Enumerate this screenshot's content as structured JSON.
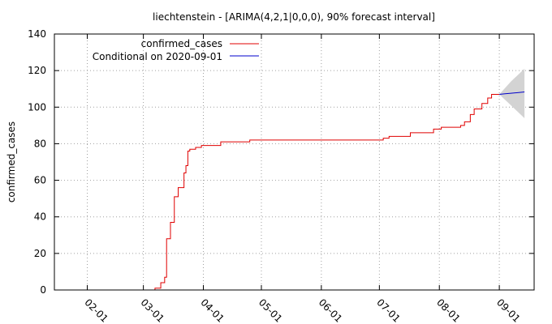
{
  "chart_data": {
    "type": "line",
    "title": "liechtenstein -  [ARIMA(4,2,1|0,0,0), 90% forecast interval]",
    "xlabel": "",
    "ylabel": "confirmed_cases",
    "xlim": [
      "2020-01-15",
      "2020-09-19"
    ],
    "ylim": [
      0,
      140
    ],
    "y_ticks": [
      0,
      20,
      40,
      60,
      80,
      100,
      120,
      140
    ],
    "x_ticks": [
      {
        "date": "2020-02-01",
        "label": "02-01"
      },
      {
        "date": "2020-03-01",
        "label": "03-01"
      },
      {
        "date": "2020-04-01",
        "label": "04-01"
      },
      {
        "date": "2020-05-01",
        "label": "05-01"
      },
      {
        "date": "2020-06-01",
        "label": "06-01"
      },
      {
        "date": "2020-07-01",
        "label": "07-01"
      },
      {
        "date": "2020-08-01",
        "label": "08-01"
      },
      {
        "date": "2020-09-01",
        "label": "09-01"
      }
    ],
    "grid": true,
    "legend_position": "top-left",
    "series": [
      {
        "name": "confirmed_cases",
        "color": "#e00000",
        "style": "step",
        "points": [
          [
            "2020-02-27",
            0
          ],
          [
            "2020-03-07",
            1
          ],
          [
            "2020-03-10",
            4
          ],
          [
            "2020-03-12",
            7
          ],
          [
            "2020-03-13",
            28
          ],
          [
            "2020-03-15",
            37
          ],
          [
            "2020-03-17",
            51
          ],
          [
            "2020-03-19",
            56
          ],
          [
            "2020-03-22",
            64
          ],
          [
            "2020-03-23",
            68
          ],
          [
            "2020-03-24",
            76
          ],
          [
            "2020-03-25",
            77
          ],
          [
            "2020-03-28",
            78
          ],
          [
            "2020-03-31",
            79
          ],
          [
            "2020-04-10",
            81
          ],
          [
            "2020-04-25",
            82
          ],
          [
            "2020-07-03",
            83
          ],
          [
            "2020-07-06",
            84
          ],
          [
            "2020-07-17",
            86
          ],
          [
            "2020-07-29",
            88
          ],
          [
            "2020-08-02",
            89
          ],
          [
            "2020-08-12",
            90
          ],
          [
            "2020-08-14",
            92
          ],
          [
            "2020-08-17",
            96
          ],
          [
            "2020-08-19",
            99
          ],
          [
            "2020-08-23",
            102
          ],
          [
            "2020-08-26",
            105
          ],
          [
            "2020-08-28",
            107
          ],
          [
            "2020-09-01",
            107
          ]
        ]
      },
      {
        "name": "Conditional on 2020-09-01",
        "color": "#0000cc",
        "style": "line",
        "points": [
          [
            "2020-09-01",
            107
          ],
          [
            "2020-09-04",
            107.3
          ],
          [
            "2020-09-07",
            107.6
          ],
          [
            "2020-09-10",
            107.9
          ],
          [
            "2020-09-14",
            108.3
          ]
        ]
      }
    ],
    "forecast_interval": {
      "level": "90%",
      "color": "#d3d3d3",
      "points": [
        {
          "date": "2020-09-01",
          "low": 107,
          "high": 107
        },
        {
          "date": "2020-09-07",
          "low": 101,
          "high": 114
        },
        {
          "date": "2020-09-14",
          "low": 94,
          "high": 121
        }
      ]
    }
  }
}
